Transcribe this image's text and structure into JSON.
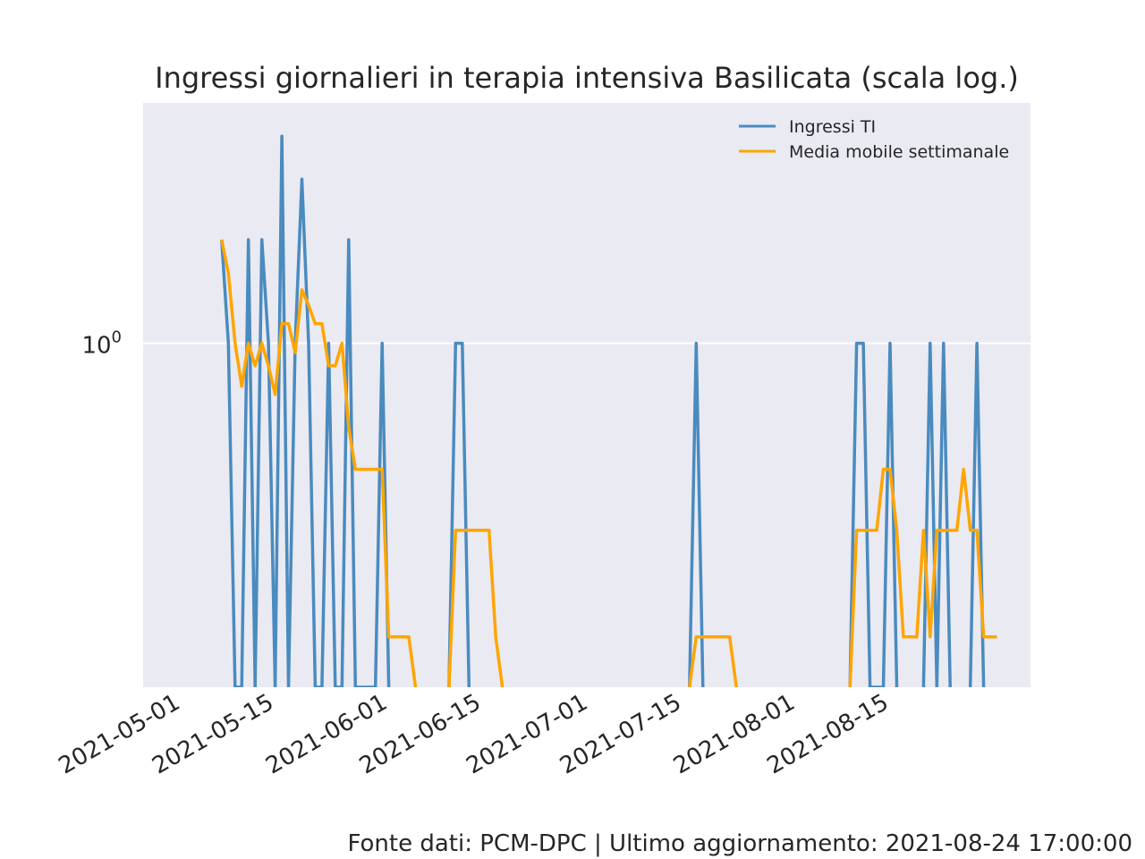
{
  "footer": "Fonte dati: PCM-DPC | Ultimo aggiornamento: 2021-08-24 17:00:00",
  "chart_data": {
    "type": "line",
    "title": "Ingressi giornalieri in terapia intensiva Basilicata (scala log.)",
    "xlabel": "",
    "ylabel": "",
    "yscale": "log",
    "ylim": [
      0.1,
      5
    ],
    "grid": true,
    "legend_position": "top-right",
    "x_ticks": [
      "2021-05-01",
      "2021-05-15",
      "2021-06-01",
      "2021-06-15",
      "2021-07-01",
      "2021-07-15",
      "2021-08-01",
      "2021-08-15"
    ],
    "y_ticks": [
      {
        "value": 1,
        "label": "10",
        "superscript": "0"
      }
    ],
    "colors": {
      "Ingressi TI": "#4a8bbf",
      "Media mobile settimanale": "#ffa500",
      "background": "#eaeaf2",
      "grid": "#ffffff"
    },
    "series": [
      {
        "name": "Ingressi TI",
        "points": [
          [
            "2021-05-07",
            2
          ],
          [
            "2021-05-08",
            1
          ],
          [
            "2021-05-09",
            0
          ],
          [
            "2021-05-10",
            0
          ],
          [
            "2021-05-11",
            2
          ],
          [
            "2021-05-12",
            0
          ],
          [
            "2021-05-13",
            2
          ],
          [
            "2021-05-14",
            1
          ],
          [
            "2021-05-15",
            0
          ],
          [
            "2021-05-16",
            4
          ],
          [
            "2021-05-17",
            0
          ],
          [
            "2021-05-18",
            1
          ],
          [
            "2021-05-19",
            3
          ],
          [
            "2021-05-20",
            1
          ],
          [
            "2021-05-21",
            0
          ],
          [
            "2021-05-22",
            0
          ],
          [
            "2021-05-23",
            1
          ],
          [
            "2021-05-24",
            0
          ],
          [
            "2021-05-25",
            0
          ],
          [
            "2021-05-26",
            2
          ],
          [
            "2021-05-27",
            0
          ],
          [
            "2021-05-28",
            0
          ],
          [
            "2021-05-29",
            0
          ],
          [
            "2021-05-30",
            0
          ],
          [
            "2021-05-31",
            1
          ],
          [
            "2021-06-01",
            0
          ],
          [
            "2021-06-10",
            0
          ],
          [
            "2021-06-11",
            1
          ],
          [
            "2021-06-12",
            1
          ],
          [
            "2021-06-13",
            0
          ],
          [
            "2021-07-16",
            0
          ],
          [
            "2021-07-17",
            1
          ],
          [
            "2021-07-18",
            0
          ],
          [
            "2021-08-09",
            0
          ],
          [
            "2021-08-10",
            1
          ],
          [
            "2021-08-11",
            1
          ],
          [
            "2021-08-12",
            0
          ],
          [
            "2021-08-13",
            0
          ],
          [
            "2021-08-14",
            0
          ],
          [
            "2021-08-15",
            1
          ],
          [
            "2021-08-16",
            0
          ],
          [
            "2021-08-20",
            0
          ],
          [
            "2021-08-21",
            1
          ],
          [
            "2021-08-22",
            0
          ],
          [
            "2021-08-23",
            1
          ],
          [
            "2021-08-24",
            0
          ],
          [
            "2021-08-27",
            0
          ],
          [
            "2021-08-28",
            1
          ],
          [
            "2021-08-29",
            0
          ]
        ]
      },
      {
        "name": "Media mobile settimanale",
        "points": [
          [
            "2021-05-07",
            2
          ],
          [
            "2021-05-08",
            1.6
          ],
          [
            "2021-05-09",
            1
          ],
          [
            "2021-05-10",
            0.75
          ],
          [
            "2021-05-11",
            1
          ],
          [
            "2021-05-12",
            0.86
          ],
          [
            "2021-05-13",
            1
          ],
          [
            "2021-05-14",
            0.86
          ],
          [
            "2021-05-15",
            0.71
          ],
          [
            "2021-05-16",
            1.14
          ],
          [
            "2021-05-17",
            1.14
          ],
          [
            "2021-05-18",
            0.94
          ],
          [
            "2021-05-19",
            1.43
          ],
          [
            "2021-05-20",
            1.29
          ],
          [
            "2021-05-21",
            1.14
          ],
          [
            "2021-05-22",
            1.14
          ],
          [
            "2021-05-23",
            0.86
          ],
          [
            "2021-05-24",
            0.86
          ],
          [
            "2021-05-25",
            1
          ],
          [
            "2021-05-26",
            0.57
          ],
          [
            "2021-05-27",
            0.43
          ],
          [
            "2021-05-28",
            0.43
          ],
          [
            "2021-05-29",
            0.43
          ],
          [
            "2021-05-30",
            0.43
          ],
          [
            "2021-05-31",
            0.43
          ],
          [
            "2021-06-01",
            0.14
          ],
          [
            "2021-06-02",
            0.14
          ],
          [
            "2021-06-03",
            0.14
          ],
          [
            "2021-06-04",
            0.14
          ],
          [
            "2021-06-05",
            0.1
          ],
          [
            "2021-06-10",
            0.1
          ],
          [
            "2021-06-11",
            0.286
          ],
          [
            "2021-06-12",
            0.286
          ],
          [
            "2021-06-13",
            0.286
          ],
          [
            "2021-06-14",
            0.286
          ],
          [
            "2021-06-15",
            0.286
          ],
          [
            "2021-06-16",
            0.286
          ],
          [
            "2021-06-17",
            0.14
          ],
          [
            "2021-06-18",
            0.1
          ],
          [
            "2021-07-16",
            0.1
          ],
          [
            "2021-07-17",
            0.14
          ],
          [
            "2021-07-18",
            0.14
          ],
          [
            "2021-07-19",
            0.14
          ],
          [
            "2021-07-20",
            0.14
          ],
          [
            "2021-07-21",
            0.14
          ],
          [
            "2021-07-22",
            0.14
          ],
          [
            "2021-07-23",
            0.1
          ],
          [
            "2021-08-09",
            0.1
          ],
          [
            "2021-08-10",
            0.286
          ],
          [
            "2021-08-11",
            0.286
          ],
          [
            "2021-08-12",
            0.286
          ],
          [
            "2021-08-13",
            0.286
          ],
          [
            "2021-08-14",
            0.43
          ],
          [
            "2021-08-15",
            0.43
          ],
          [
            "2021-08-16",
            0.286
          ],
          [
            "2021-08-17",
            0.14
          ],
          [
            "2021-08-18",
            0.14
          ],
          [
            "2021-08-19",
            0.14
          ],
          [
            "2021-08-20",
            0.286
          ],
          [
            "2021-08-21",
            0.14
          ],
          [
            "2021-08-22",
            0.286
          ],
          [
            "2021-08-23",
            0.286
          ],
          [
            "2021-08-24",
            0.286
          ],
          [
            "2021-08-25",
            0.286
          ],
          [
            "2021-08-26",
            0.43
          ],
          [
            "2021-08-27",
            0.286
          ],
          [
            "2021-08-28",
            0.286
          ],
          [
            "2021-08-29",
            0.14
          ],
          [
            "2021-08-30",
            0.14
          ],
          [
            "2021-08-31",
            0.14
          ]
        ]
      }
    ]
  }
}
